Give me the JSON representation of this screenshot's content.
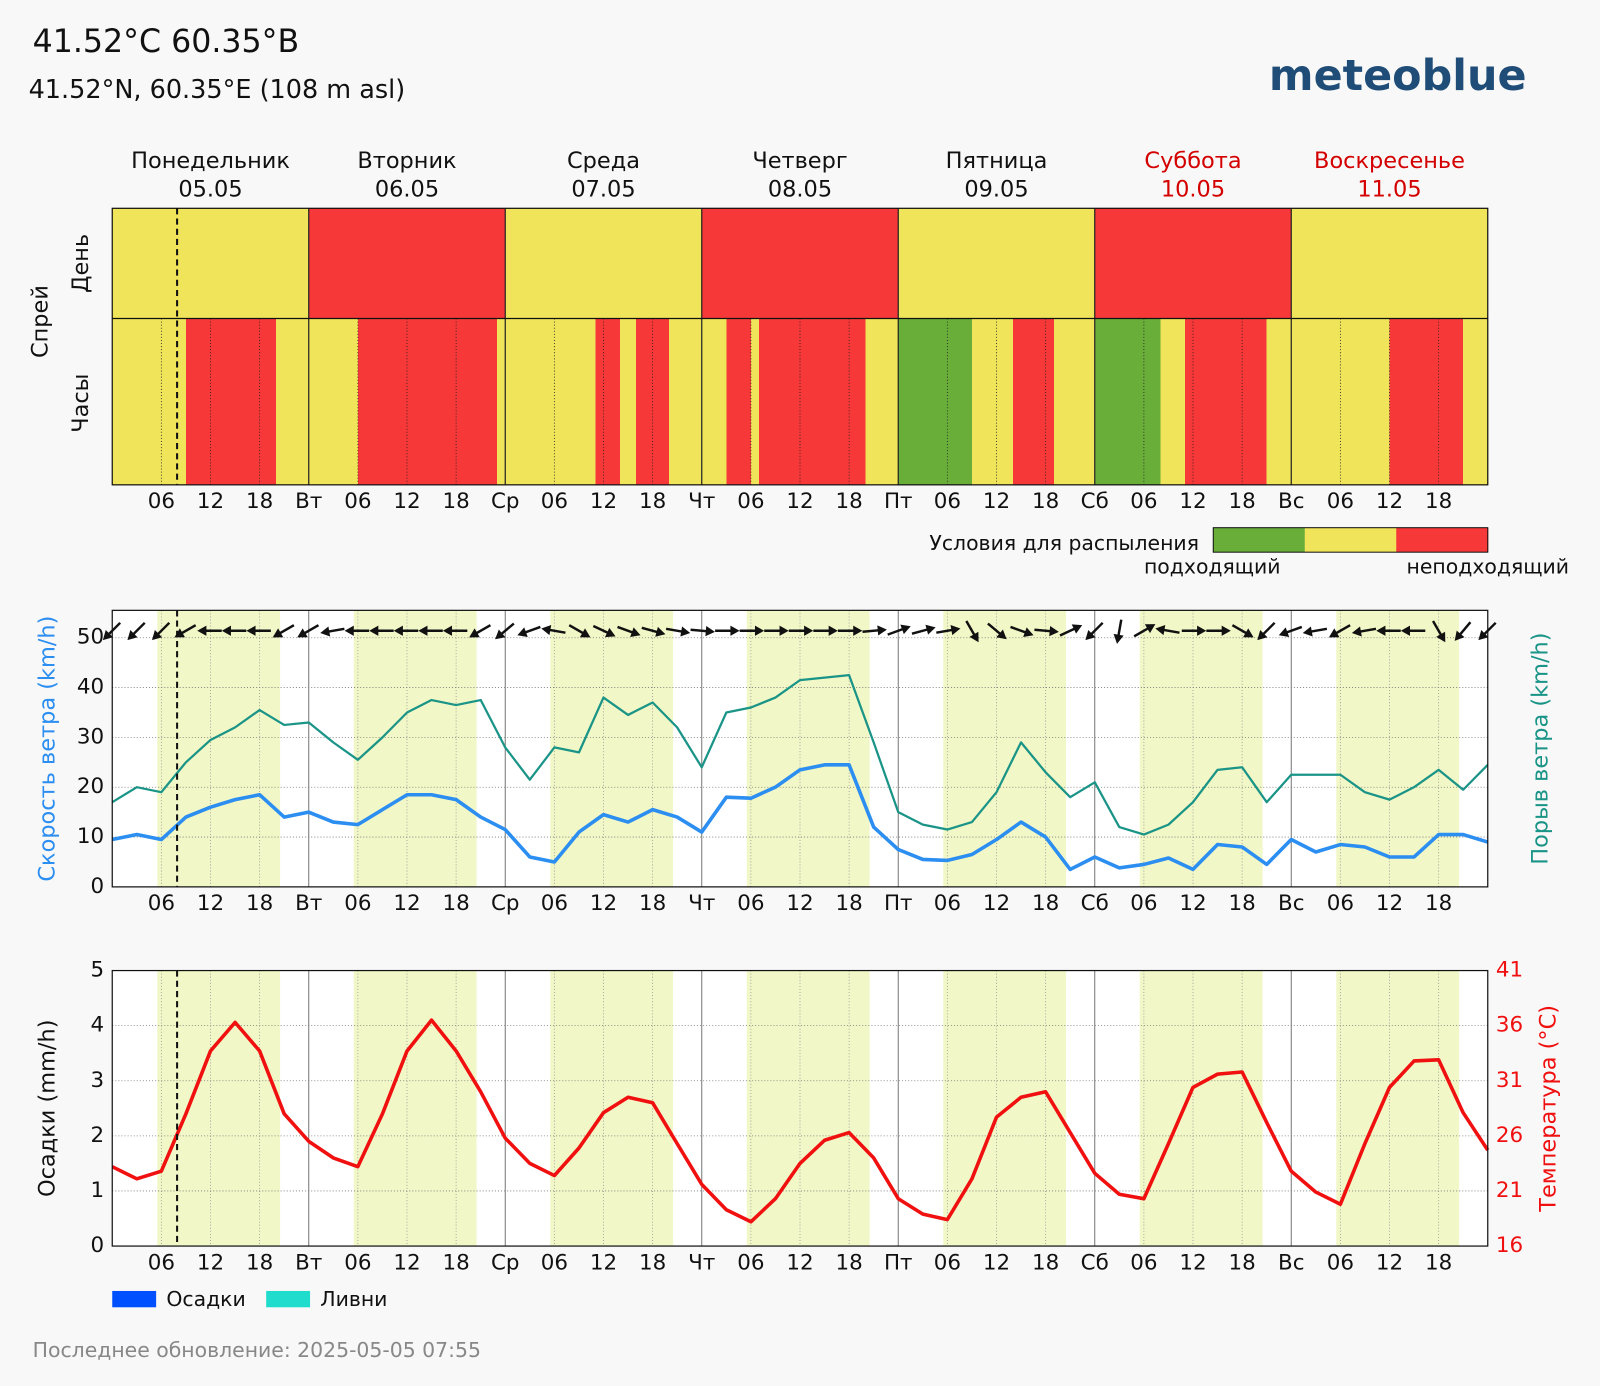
{
  "header": {
    "title": "41.52°C 60.35°B",
    "subtitle": "41.52°N, 60.35°E (108 m asl)",
    "logo": "meteoblue"
  },
  "chart_data": [
    {
      "type": "spray",
      "ylabel": "Спрей",
      "row_labels": [
        "День",
        "Часы"
      ],
      "days": [
        {
          "name": "Понедельник",
          "date": "05.05",
          "weekend": false
        },
        {
          "name": "Вторник",
          "date": "06.05",
          "weekend": false
        },
        {
          "name": "Среда",
          "date": "07.05",
          "weekend": false
        },
        {
          "name": "Четверг",
          "date": "08.05",
          "weekend": false
        },
        {
          "name": "Пятница",
          "date": "09.05",
          "weekend": false
        },
        {
          "name": "Суббота",
          "date": "10.05",
          "weekend": true
        },
        {
          "name": "Воскресенье",
          "date": "11.05",
          "weekend": true
        }
      ],
      "xlim": [
        0,
        168
      ],
      "xticks": [
        {
          "value": 6,
          "label": "06"
        },
        12,
        18,
        {
          "value": 24,
          "label": "Вт"
        },
        {
          "value": 30,
          "label": "06"
        },
        {
          "value": 36,
          "label": "12"
        },
        {
          "value": 42,
          "label": "18"
        },
        {
          "value": 48,
          "label": "Ср"
        },
        {
          "value": 54,
          "label": "06"
        },
        {
          "value": 60,
          "label": "12"
        },
        {
          "value": 66,
          "label": "18"
        },
        {
          "value": 72,
          "label": "Чт"
        },
        {
          "value": 78,
          "label": "06"
        },
        {
          "value": 84,
          "label": "12"
        },
        {
          "value": 90,
          "label": "18"
        },
        {
          "value": 96,
          "label": "Пт"
        },
        {
          "value": 102,
          "label": "06"
        },
        {
          "value": 108,
          "label": "12"
        },
        {
          "value": 114,
          "label": "18"
        },
        {
          "value": 120,
          "label": "Сб"
        },
        {
          "value": 126,
          "label": "06"
        },
        {
          "value": 132,
          "label": "12"
        },
        {
          "value": 138,
          "label": "18"
        },
        {
          "value": 144,
          "label": "Вс"
        },
        {
          "value": 150,
          "label": "06"
        },
        {
          "value": 156,
          "label": "12"
        },
        {
          "value": 162,
          "label": "18"
        }
      ],
      "now": 7.92,
      "level_colors": [
        "#6aae3a",
        "#f0e45a",
        "#f73838"
      ],
      "day_values": [
        1,
        2,
        1,
        2,
        1,
        2,
        1
      ],
      "hour_values": [
        1,
        1,
        1,
        1,
        1,
        1,
        1,
        1,
        1,
        2,
        2,
        2,
        2,
        2,
        2,
        2,
        2,
        2,
        2,
        2,
        1,
        1,
        1,
        1,
        1,
        1,
        1,
        1,
        1,
        1,
        2,
        2,
        2,
        2,
        2,
        2,
        2,
        2,
        2,
        2,
        2,
        2,
        2,
        2,
        2,
        2,
        2,
        1,
        1,
        1,
        1,
        1,
        1,
        1,
        1,
        1,
        1,
        1,
        1,
        2,
        2,
        2,
        1,
        1,
        2,
        2,
        2,
        2,
        1,
        1,
        1,
        1,
        1,
        1,
        1,
        2,
        2,
        2,
        1,
        2,
        2,
        2,
        2,
        2,
        2,
        2,
        2,
        2,
        2,
        2,
        2,
        2,
        1,
        1,
        1,
        1,
        0,
        0,
        0,
        0,
        0,
        0,
        0,
        0,
        0,
        1,
        1,
        1,
        1,
        1,
        2,
        2,
        2,
        2,
        2,
        1,
        1,
        1,
        1,
        1,
        0,
        0,
        0,
        0,
        0,
        0,
        0,
        0,
        1,
        1,
        1,
        2,
        2,
        2,
        2,
        2,
        2,
        2,
        2,
        2,
        2,
        1,
        1,
        1,
        1,
        1,
        1,
        1,
        1,
        1,
        1,
        1,
        1,
        1,
        1,
        1,
        2,
        2,
        2,
        2,
        2,
        2,
        2,
        2,
        2,
        1,
        1,
        1
      ],
      "legend": {
        "title": "Условия для распыления",
        "low": "подходящий",
        "high": "неподходящий"
      }
    },
    {
      "type": "line",
      "ylabel": "Скорость ветра (km/h)",
      "y2label": "Порыв ветра (km/h)",
      "ylabel_color": "#2b8ef0",
      "y2label_color": "#1a9487",
      "ylim": [
        0,
        55.5
      ],
      "yticks": [
        0,
        10,
        20,
        30,
        40,
        50
      ],
      "y2lim": [
        0,
        55.5
      ],
      "grid": true,
      "daylight": [
        [
          5.5,
          20.5
        ],
        [
          29.5,
          44.5
        ],
        [
          53.5,
          68.5
        ],
        [
          77.5,
          92.5
        ],
        [
          101.5,
          116.5
        ],
        [
          125.5,
          140.5
        ],
        [
          149.5,
          164.5
        ]
      ],
      "x": [
        0,
        3,
        6,
        9,
        12,
        15,
        18,
        21,
        24,
        27,
        30,
        33,
        36,
        39,
        42,
        45,
        48,
        51,
        54,
        57,
        60,
        63,
        66,
        69,
        72,
        75,
        78,
        81,
        84,
        87,
        90,
        93,
        96,
        99,
        102,
        105,
        108,
        111,
        114,
        117,
        120,
        123,
        126,
        129,
        132,
        135,
        138,
        141,
        144,
        147,
        150,
        153,
        156,
        159,
        162,
        165,
        168
      ],
      "series": [
        {
          "color": "#2b8ef0",
          "values": [
            9.5,
            10.5,
            9.5,
            14,
            16,
            17.5,
            18.5,
            14,
            15,
            13,
            12.5,
            15.5,
            18.5,
            18.5,
            17.5,
            14,
            11.5,
            6,
            5,
            11,
            14.5,
            13,
            15.5,
            14,
            11,
            18,
            17.8,
            20,
            23.5,
            24.5,
            24.5,
            12,
            7.5,
            5.5,
            5.3,
            6.5,
            9.5,
            13,
            10,
            3.5,
            6,
            3.8,
            4.5,
            5.8,
            3.5,
            8.5,
            8,
            4.5,
            9.5,
            7,
            8.5,
            8,
            6,
            6,
            10.5,
            10.5,
            9
          ]
        },
        {
          "color": "#1a9487",
          "axis": "y2",
          "values": [
            17,
            20,
            19,
            25,
            29.5,
            32,
            35.5,
            32.5,
            33,
            29,
            25.5,
            30,
            35,
            37.5,
            36.5,
            37.5,
            28,
            21.5,
            28,
            27,
            38,
            34.5,
            37,
            32,
            24,
            35,
            36,
            38,
            41.5,
            42,
            42.5,
            29,
            15,
            12.5,
            11.5,
            13,
            19,
            29,
            23,
            18,
            21,
            12,
            10.5,
            12.5,
            17,
            23.5,
            24,
            17,
            22.5,
            22.5,
            22.5,
            19,
            17.5,
            20,
            23.5,
            19.5,
            24.5
          ]
        }
      ],
      "arrow_color": "#111",
      "directions": [
        45,
        45,
        45,
        60,
        90,
        90,
        90,
        60,
        60,
        80,
        90,
        90,
        90,
        90,
        90,
        60,
        50,
        70,
        100,
        300,
        295,
        290,
        285,
        280,
        275,
        270,
        270,
        270,
        270,
        270,
        270,
        265,
        250,
        255,
        260,
        330,
        310,
        290,
        275,
        245,
        45,
        10,
        240,
        100,
        270,
        270,
        300,
        45,
        70,
        80,
        60,
        80,
        90,
        90,
        330,
        40,
        45
      ]
    },
    {
      "type": "line",
      "ylabel": "Осадки (mm/h)",
      "y2label": "Температура (°C)",
      "ylabel_color": "#111",
      "y2label_color": "#f01010",
      "ylim": [
        0,
        5
      ],
      "yticks": [
        0,
        1,
        2,
        3,
        4,
        5
      ],
      "y2lim": [
        16,
        41
      ],
      "y2ticks": [
        16,
        21,
        26,
        31,
        36,
        41
      ],
      "grid": true,
      "daylight": [
        [
          5.5,
          20.5
        ],
        [
          29.5,
          44.5
        ],
        [
          53.5,
          68.5
        ],
        [
          77.5,
          92.5
        ],
        [
          101.5,
          116.5
        ],
        [
          125.5,
          140.5
        ],
        [
          149.5,
          164.5
        ]
      ],
      "x": [
        0,
        3,
        6,
        9,
        12,
        15,
        18,
        21,
        24,
        27,
        30,
        33,
        36,
        39,
        42,
        45,
        48,
        51,
        54,
        57,
        60,
        63,
        66,
        69,
        72,
        75,
        78,
        81,
        84,
        87,
        90,
        93,
        96,
        99,
        102,
        105,
        108,
        111,
        114,
        117,
        120,
        123,
        126,
        129,
        132,
        135,
        138,
        141,
        144,
        147,
        150,
        153,
        156,
        159,
        162,
        165,
        168
      ],
      "series": [
        {
          "name": "Осадки",
          "type": "bar",
          "color": "#0050ff",
          "values": [
            0,
            0,
            0,
            0,
            0,
            0,
            0,
            0,
            0,
            0,
            0,
            0,
            0,
            0,
            0,
            0,
            0,
            0,
            0,
            0,
            0,
            0,
            0,
            0,
            0,
            0,
            0,
            0,
            0,
            0,
            0,
            0,
            0,
            0,
            0,
            0,
            0,
            0,
            0,
            0,
            0,
            0,
            0,
            0,
            0,
            0,
            0,
            0,
            0,
            0,
            0,
            0,
            0,
            0,
            0,
            0,
            0
          ]
        },
        {
          "name": "Ливни",
          "type": "bar",
          "color": "#20dccc",
          "values": [
            0,
            0,
            0,
            0,
            0,
            0,
            0,
            0,
            0,
            0,
            0,
            0,
            0,
            0,
            0,
            0,
            0,
            0,
            0,
            0,
            0,
            0,
            0,
            0,
            0,
            0,
            0,
            0,
            0,
            0,
            0,
            0,
            0,
            0,
            0,
            0,
            0,
            0,
            0,
            0,
            0,
            0,
            0,
            0,
            0,
            0,
            0,
            0,
            0,
            0,
            0,
            0,
            0,
            0,
            0,
            0,
            0
          ]
        },
        {
          "color": "#f01010",
          "axis": "y2",
          "values": [
            23.2,
            22.1,
            22.8,
            28,
            33.7,
            36.3,
            33.7,
            28,
            25.5,
            24,
            23.2,
            28,
            33.7,
            36.5,
            33.7,
            30,
            25.8,
            23.5,
            22.4,
            24.9,
            28.1,
            29.5,
            29,
            25.3,
            21.6,
            19.3,
            18.2,
            20.3,
            23.5,
            25.6,
            26.3,
            24,
            20.3,
            18.9,
            18.4,
            22.1,
            27.7,
            29.5,
            30,
            26.3,
            22.6,
            20.7,
            20.3,
            25.3,
            30.4,
            31.6,
            31.8,
            27.2,
            22.8,
            20.9,
            19.8,
            25.3,
            30.4,
            32.8,
            32.9,
            28.1,
            24.7
          ]
        }
      ]
    }
  ],
  "footer": "Последнее обновление: 2025-05-05 07:55"
}
